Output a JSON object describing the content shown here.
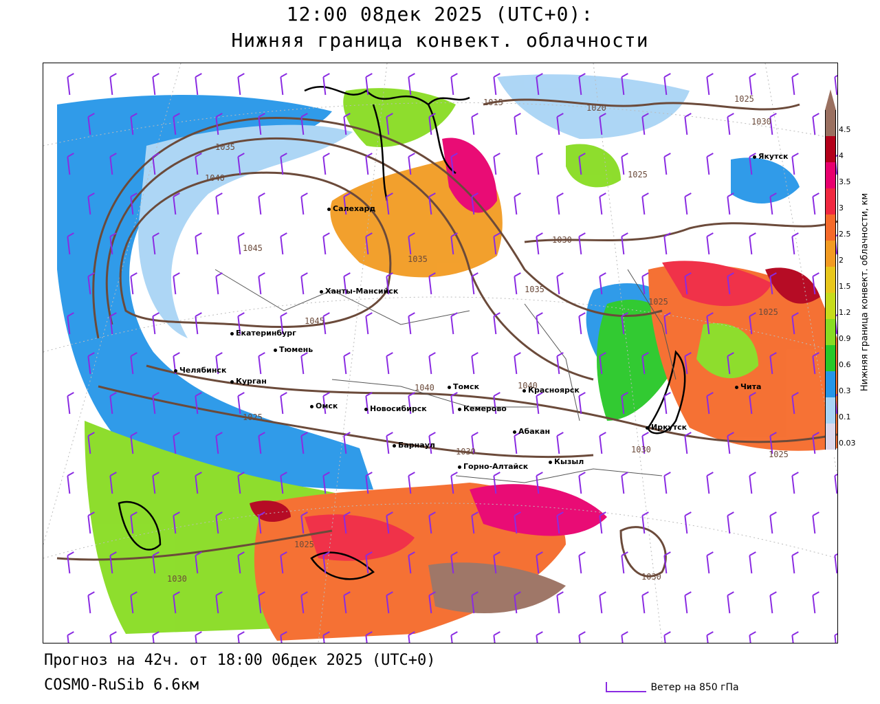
{
  "header": {
    "title_line1": "12:00 08дек 2025 (UTC+0):",
    "title_line2": "Нижняя граница конвект. облачности"
  },
  "footer": {
    "forecast": "Прогноз на 42ч. от 18:00 06дек 2025 (UTC+0)",
    "model": "COSMO-RuSib 6.6км",
    "wind_legend": "Ветер на 850 гПа"
  },
  "legend": {
    "title": "Нижняя граница конвект. облачности, км",
    "labels": [
      "4.5",
      "4",
      "3.5",
      "3",
      "2.5",
      "2",
      "1.5",
      "1.2",
      "0.9",
      "0.6",
      "0.3",
      "0.1",
      "0.03"
    ],
    "colors": [
      "#9a7060",
      "#b3001a",
      "#e8006e",
      "#f02840",
      "#f56a2a",
      "#f29b22",
      "#e8c71c",
      "#c6dc1c",
      "#88dc22",
      "#28c828",
      "#2596e8",
      "#a9d4f5",
      "#dcd8ec"
    ]
  },
  "cities": [
    {
      "name": "Якутск"
    },
    {
      "name": "Салехард"
    },
    {
      "name": "Ханты-Мансийск"
    },
    {
      "name": "Екатеринбург"
    },
    {
      "name": "Тюмень"
    },
    {
      "name": "Челябинск"
    },
    {
      "name": "Курган"
    },
    {
      "name": "Омск"
    },
    {
      "name": "Новосибирск"
    },
    {
      "name": "Томск"
    },
    {
      "name": "Кемерово"
    },
    {
      "name": "Красноярск"
    },
    {
      "name": "Абакан"
    },
    {
      "name": "Барнаул"
    },
    {
      "name": "Горно-Алтайск"
    },
    {
      "name": "Кызыл"
    },
    {
      "name": "Иркутск"
    },
    {
      "name": "Чита"
    }
  ],
  "isobar_labels": [
    "1015",
    "1020",
    "1025",
    "1030",
    "1035",
    "1040",
    "1045"
  ],
  "colors": {
    "isobar": "#6b4a3a",
    "wind_barb": "#8a2be2",
    "coast": "#000000"
  }
}
